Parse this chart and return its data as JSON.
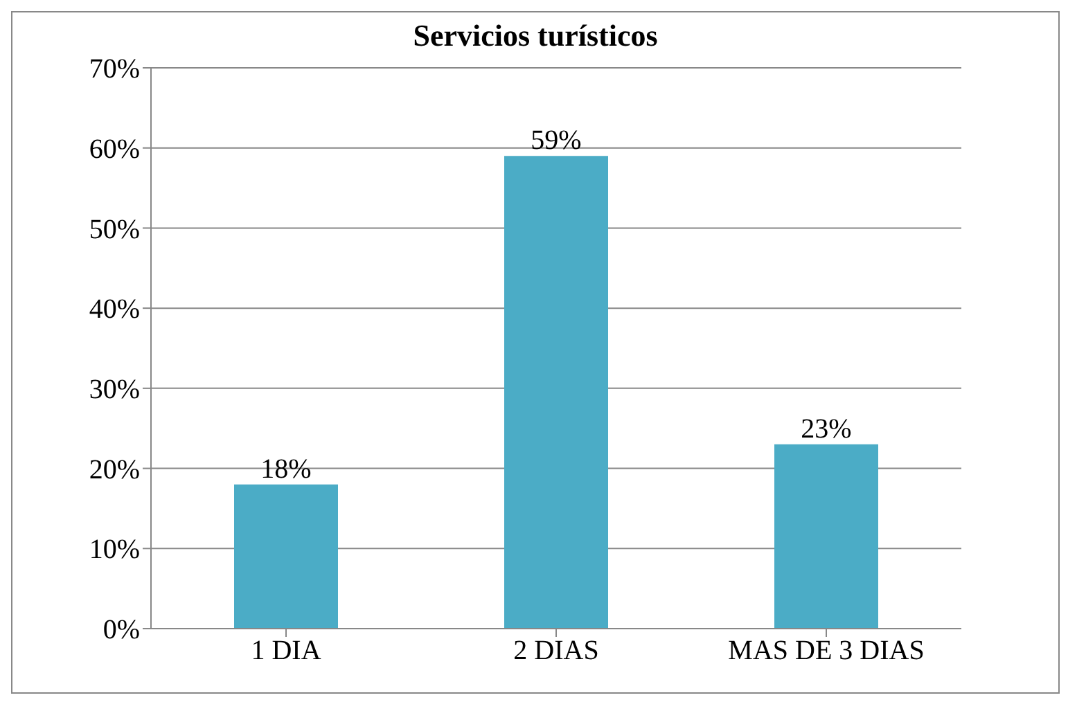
{
  "chart_data": {
    "type": "bar",
    "title": "Servicios turísticos",
    "categories": [
      "1 DIA",
      "2 DIAS",
      "MAS DE 3 DIAS"
    ],
    "values": [
      18,
      59,
      23
    ],
    "color": "#4bacc6",
    "value_labels": [
      "18%",
      "59%",
      "23%"
    ],
    "ylim": [
      0,
      70
    ],
    "yticks": [
      {
        "value": 0,
        "label": "0%"
      },
      {
        "value": 10,
        "label": "10%"
      },
      {
        "value": 20,
        "label": "20%"
      },
      {
        "value": 30,
        "label": "30%"
      },
      {
        "value": 40,
        "label": "40%"
      },
      {
        "value": 50,
        "label": "50%"
      },
      {
        "value": 60,
        "label": "60%"
      },
      {
        "value": 70,
        "label": "70%"
      }
    ],
    "grid": "y",
    "legend": false
  }
}
